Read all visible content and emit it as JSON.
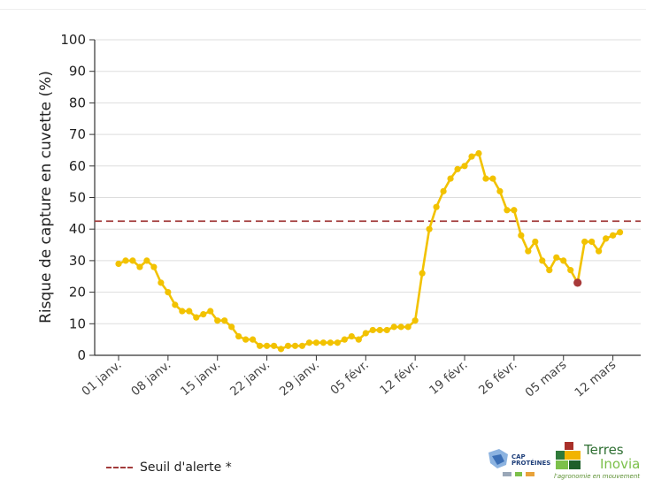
{
  "chart_data": {
    "type": "line",
    "title": "",
    "xlabel": "",
    "ylabel": "Risque de capture en cuvette (%)",
    "ylim": [
      0,
      100
    ],
    "yticks": [
      "0",
      "10",
      "20",
      "30",
      "40",
      "50",
      "60",
      "70",
      "80",
      "90",
      "100"
    ],
    "xtick_labels": [
      "01 janv.",
      "08 janv.",
      "15 janv.",
      "22 janv.",
      "29 janv.",
      "05 févr.",
      "12 févr.",
      "19 févr.",
      "26 févr.",
      "05 mars",
      "12 mars"
    ],
    "xtick_index": [
      0,
      7,
      14,
      21,
      28,
      35,
      42,
      49,
      56,
      63,
      70
    ],
    "grid": "horizontal",
    "series": [
      {
        "color": "#f2c200",
        "values": [
          29,
          30,
          30,
          28,
          30,
          28,
          23,
          20,
          16,
          14,
          14,
          12,
          13,
          14,
          11,
          11,
          9,
          6,
          5,
          5,
          3,
          3,
          3,
          2,
          3,
          3,
          3,
          4,
          4,
          4,
          4,
          4,
          5,
          6,
          5,
          7,
          8,
          8,
          8,
          9,
          9,
          9,
          11,
          26,
          40,
          47,
          52,
          56,
          59,
          60,
          63,
          64,
          56,
          56,
          52,
          46,
          46,
          38,
          33,
          36,
          30,
          27,
          31,
          30,
          27,
          23,
          36,
          36,
          33,
          37,
          38,
          39
        ],
        "highlight_index": 65,
        "highlight_color": "#a83a3a"
      }
    ],
    "threshold": {
      "value": 42.5,
      "label": "Seuil d'alerte *",
      "color": "#a23b3b"
    },
    "legend_position": "bottom-left"
  },
  "logos": {
    "cap_label": "CAP PROTÉINES",
    "terres_inovia": {
      "word1": "Terres",
      "word2": "Inovia",
      "tagline": "l'agronomie en mouvement"
    }
  }
}
